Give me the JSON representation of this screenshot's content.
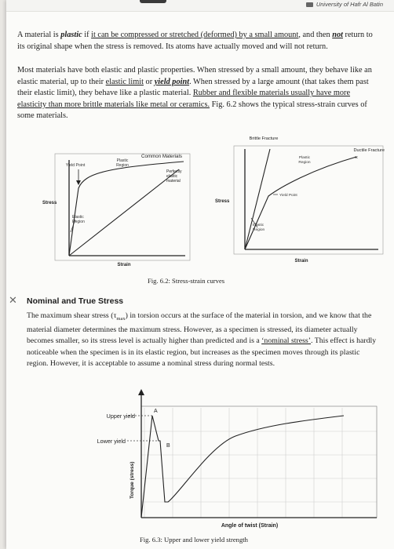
{
  "header": {
    "university": "University of Hafr Al Batin"
  },
  "paragraph1": {
    "s1": "A material is ",
    "s2": "plastic",
    "s3": " if ",
    "s4": "it can be compressed or stretched (deformed) by a small amount",
    "s5": ", and then ",
    "s6": "not",
    "s7": " return to its original shape when the stress is removed. Its atoms have actually moved and will not return."
  },
  "paragraph2": {
    "s1": "Most materials have both elastic and plastic properties. When stressed by a small amount, they behave like an elastic material, up to their ",
    "s2": "elastic limit",
    "s3": " or ",
    "s4": "yield point",
    "s5": ". When stressed by a large amount (that takes them past their elastic limit), they behave like a plastic material. ",
    "s6": "Rubber and flexible materials usually have more elasticity than more brittle materials like metal or ceramics.",
    "s7": " Fig. 6.2 shows the typical stress-strain curves of some materials."
  },
  "figure62": {
    "left": {
      "title": "Common Materials",
      "yield_point": "Yield Point",
      "plastic_region": [
        "Plastic",
        "Region"
      ],
      "elastic_region": [
        "Elastic",
        "Region"
      ],
      "perfectly_elastic": [
        "Perfectly",
        "elastic",
        "material"
      ],
      "ylabel": "Stress",
      "xlabel": "Strain"
    },
    "right": {
      "title": "Brittle Fracture",
      "ductile_fracture": "Ductile Fracture",
      "plastic_region": [
        "Plastic",
        "Region"
      ],
      "yield_point": "Yield Point",
      "elastic_region": [
        "Elastic",
        "Region"
      ],
      "ylabel": "Stress",
      "xlabel": "Strain"
    },
    "caption": "Fig. 6.2: Stress-strain curves"
  },
  "section": {
    "heading": "Nominal and True Stress",
    "s1": "The maximum shear stress (τ",
    "s1_sub": "max",
    "s2": ") in torsion occurs at the surface of the material in torsion, and we know that the material diameter determines the maximum stress. However, as a specimen is stressed, its diameter actually becomes smaller, so its stress level is actually higher than predicted and is a ",
    "s3": "‘nominal stress’",
    "s4": ". This effect is hardly noticeable when the specimen is in its elastic region, but increases as the specimen moves through its plastic region. However, it is acceptable to assume a nominal stress during normal tests."
  },
  "figure63": {
    "upper_yield": "Upper yield",
    "lower_yield": "Lower yield",
    "point_a": "A",
    "point_b": "B",
    "ylabel": "Torque (stress)",
    "xlabel": "Angle of twist (Strain)",
    "caption": "Fig. 6.3: Upper and lower yield strength"
  }
}
